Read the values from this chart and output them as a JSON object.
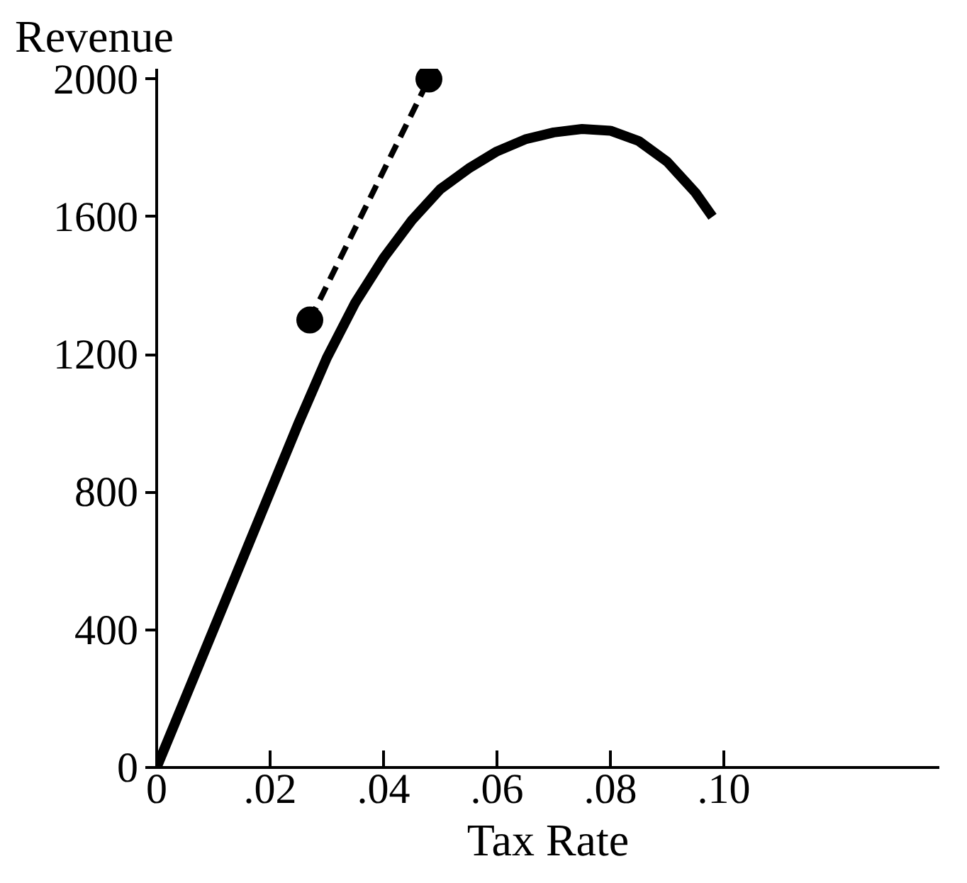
{
  "chart_data": {
    "type": "line",
    "xlabel": "Tax Rate",
    "ylabel": "Revenue",
    "xlim": [
      0,
      0.138
    ],
    "ylim": [
      0,
      2030
    ],
    "xticks": [
      {
        "value": 0,
        "label": "0"
      },
      {
        "value": 0.02,
        "label": ".02"
      },
      {
        "value": 0.04,
        "label": ".04"
      },
      {
        "value": 0.06,
        "label": ".06"
      },
      {
        "value": 0.08,
        "label": ".08"
      },
      {
        "value": 0.1,
        "label": ".10"
      }
    ],
    "yticks": [
      0,
      400,
      800,
      1200,
      1600,
      2000
    ],
    "grid": false,
    "series": [
      {
        "color": "#000000",
        "line_style": "solid",
        "marker": "none",
        "x": [
          0,
          0.005,
          0.01,
          0.015,
          0.02,
          0.025,
          0.03,
          0.035,
          0.04,
          0.045,
          0.05,
          0.055,
          0.06,
          0.065,
          0.07,
          0.075,
          0.08,
          0.085,
          0.09,
          0.095,
          0.098
        ],
        "values": [
          0,
          200,
          400,
          600,
          800,
          1000,
          1190,
          1350,
          1480,
          1590,
          1680,
          1740,
          1790,
          1825,
          1845,
          1855,
          1850,
          1820,
          1760,
          1670,
          1600
        ]
      },
      {
        "color": "#000000",
        "line_style": "dashed",
        "marker": "circle",
        "x": [
          0.027,
          0.048
        ],
        "values": [
          1300,
          2000
        ]
      }
    ]
  }
}
